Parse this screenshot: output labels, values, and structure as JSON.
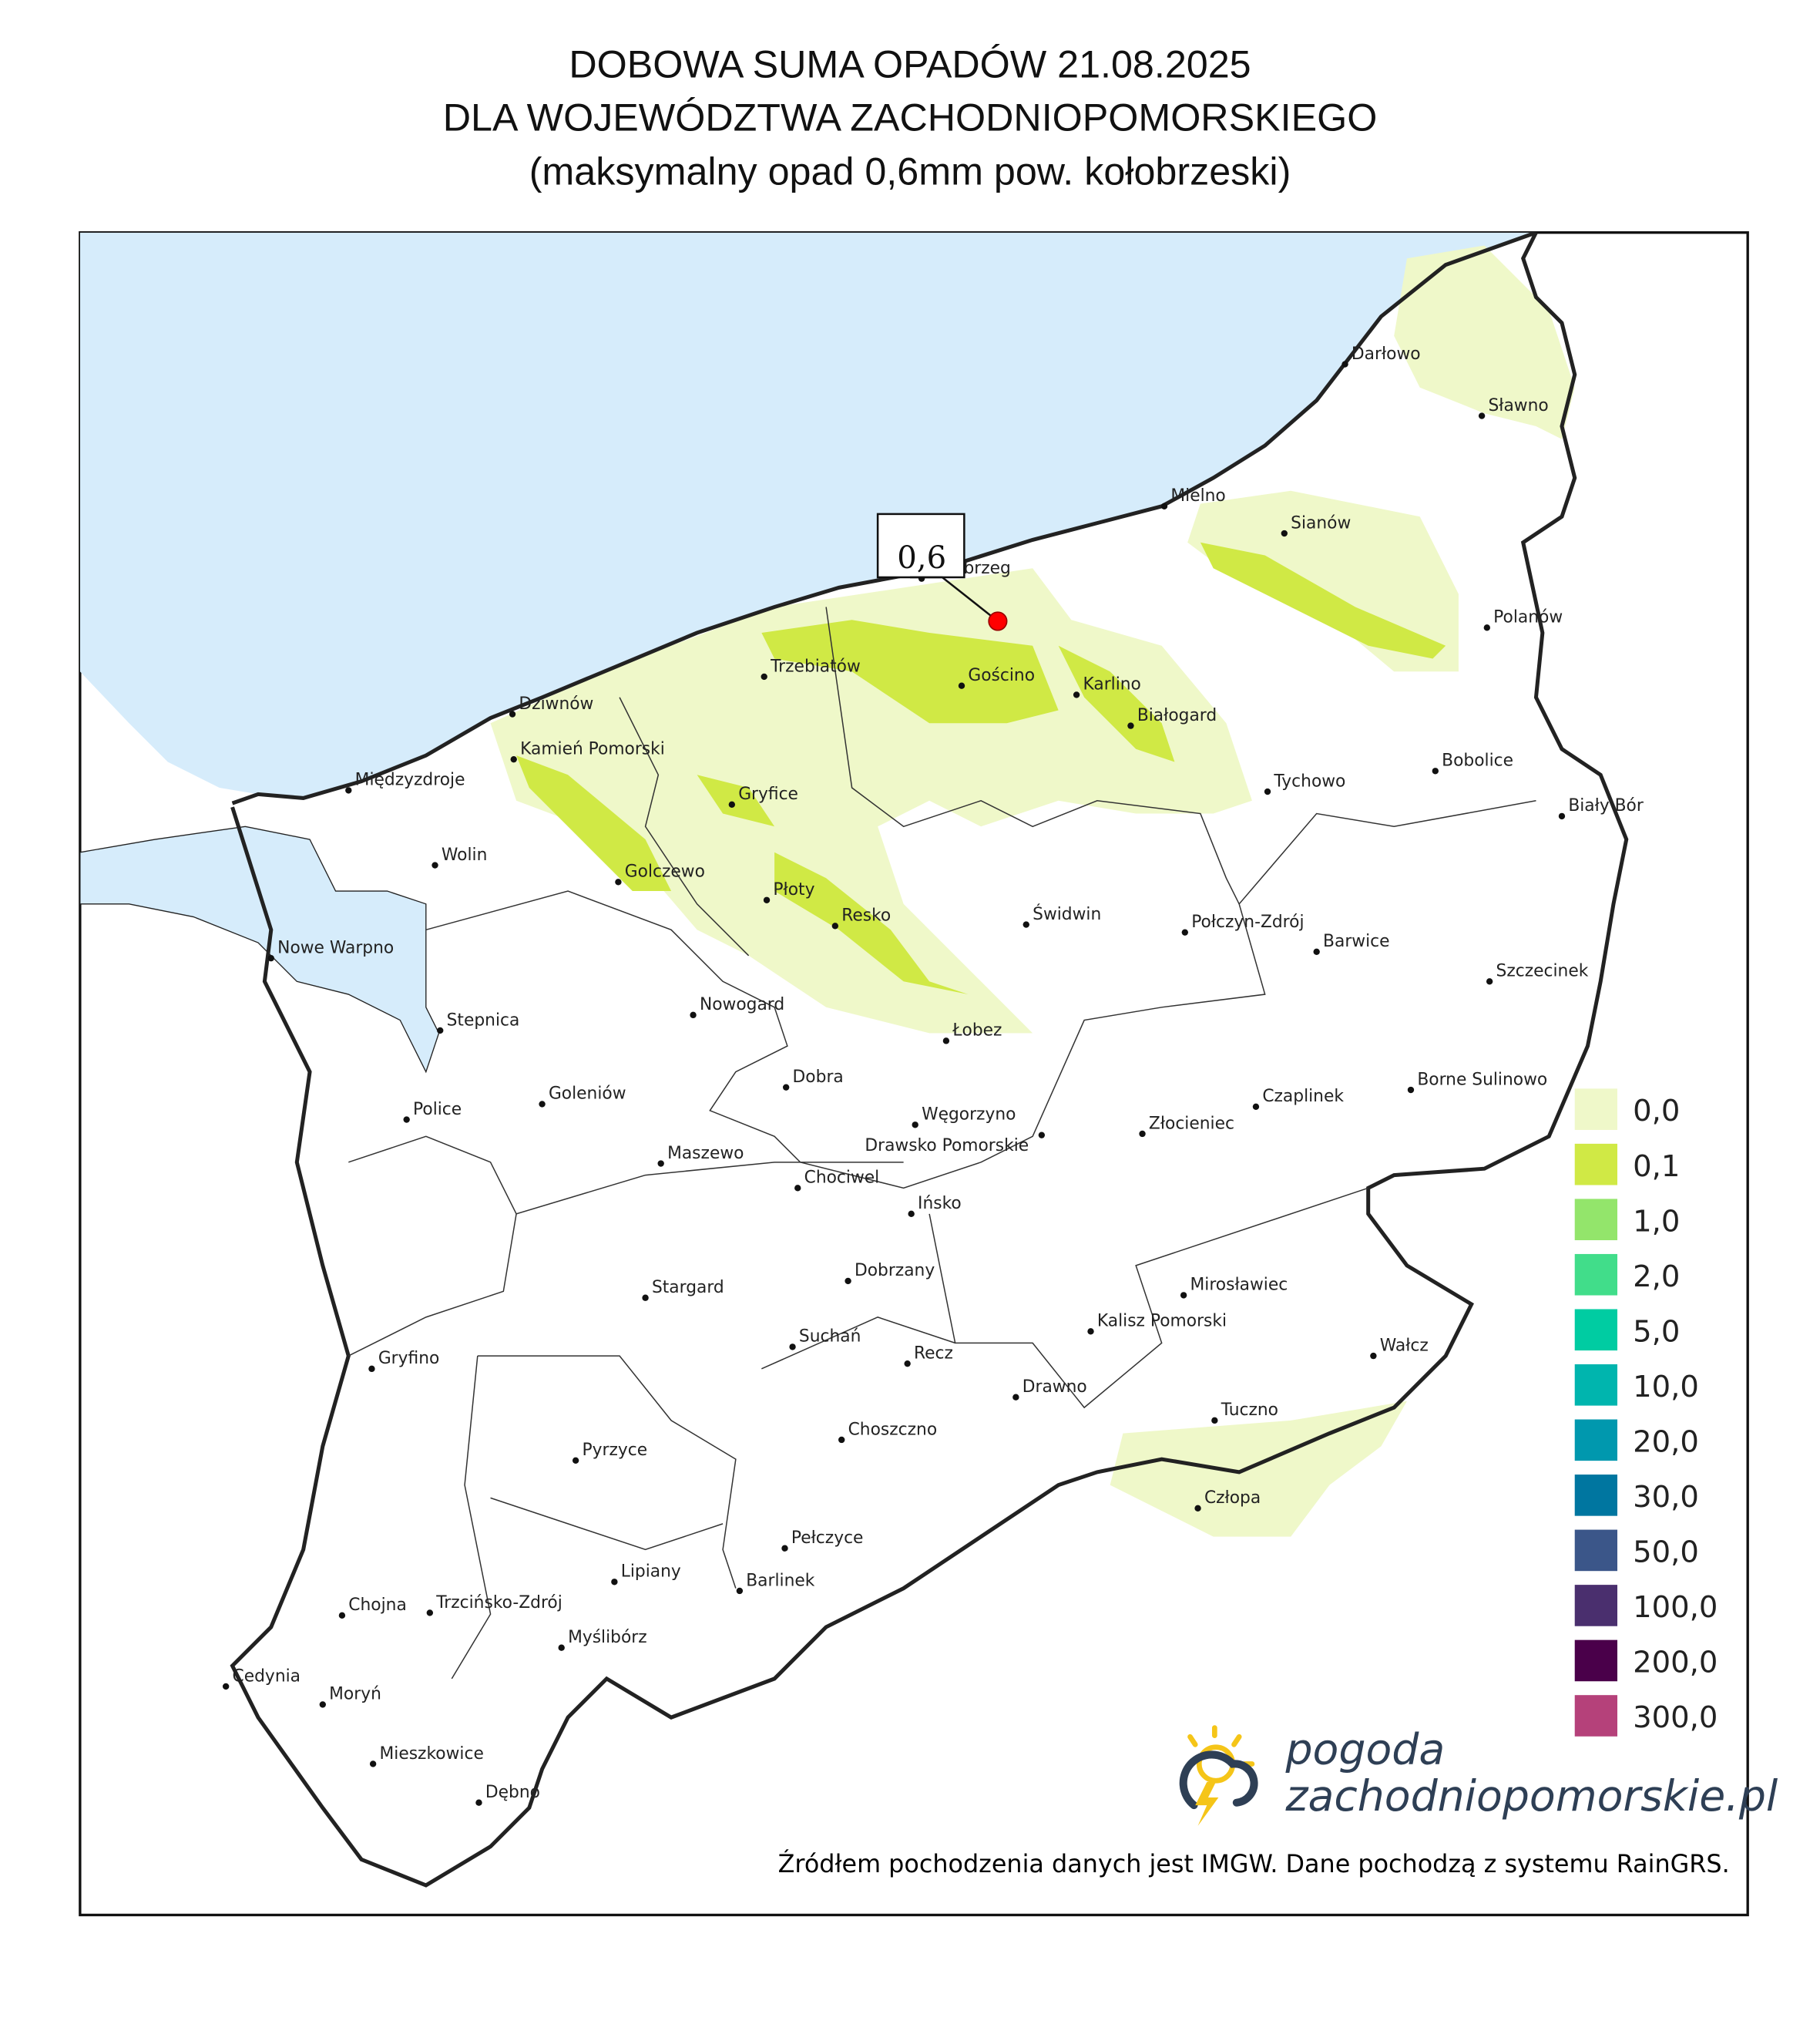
{
  "title": {
    "line1": "DOBOWA SUMA OPADÓW 21.08.2025",
    "line2": "DLA WOJEWÓDZTWA ZACHODNIOPOMORSKIEGO",
    "line3": "(maksymalny opad 0,6mm pow. kołobrzeski)"
  },
  "max_marker": {
    "value": "0,6",
    "color": "#ff0000"
  },
  "colors": {
    "sea": "#d6ecfb",
    "land": "#ffffff",
    "border": "#222222"
  },
  "legend": [
    {
      "label": "0,0",
      "color": "#eff8c9"
    },
    {
      "label": "0,1",
      "color": "#d0e945"
    },
    {
      "label": "1,0",
      "color": "#93e56b"
    },
    {
      "label": "2,0",
      "color": "#41dd8a"
    },
    {
      "label": "5,0",
      "color": "#00cca2"
    },
    {
      "label": "10,0",
      "color": "#00b5ae"
    },
    {
      "label": "20,0",
      "color": "#0098ae"
    },
    {
      "label": "30,0",
      "color": "#0076a0"
    },
    {
      "label": "50,0",
      "color": "#3b5689"
    },
    {
      "label": "100,0",
      "color": "#4a2f6e"
    },
    {
      "label": "200,0",
      "color": "#4a004a"
    },
    {
      "label": "300,0",
      "color": "#b5417a"
    }
  ],
  "cities": [
    {
      "name": "Darłowo"
    },
    {
      "name": "Sławno"
    },
    {
      "name": "Mielno"
    },
    {
      "name": "Sianów"
    },
    {
      "name": "Kołobrzeg"
    },
    {
      "name": "Polanów"
    },
    {
      "name": "Trzebiatów"
    },
    {
      "name": "Gościno"
    },
    {
      "name": "Karlino"
    },
    {
      "name": "Białogard"
    },
    {
      "name": "Dziwnów"
    },
    {
      "name": "Kamień Pomorski"
    },
    {
      "name": "Bobolice"
    },
    {
      "name": "Międzyzdroje"
    },
    {
      "name": "Gryfice"
    },
    {
      "name": "Tychowo"
    },
    {
      "name": "Biały Bór"
    },
    {
      "name": "Golczewo"
    },
    {
      "name": "Wolin"
    },
    {
      "name": "Płoty"
    },
    {
      "name": "Resko"
    },
    {
      "name": "Świdwin"
    },
    {
      "name": "Połczyn-Zdrój"
    },
    {
      "name": "Barwice"
    },
    {
      "name": "Nowe Warpno"
    },
    {
      "name": "Szczecinek"
    },
    {
      "name": "Stepnica"
    },
    {
      "name": "Nowogard"
    },
    {
      "name": "Łobez"
    },
    {
      "name": "Borne Sulinowo"
    },
    {
      "name": "Dobra"
    },
    {
      "name": "Police"
    },
    {
      "name": "Goleniów"
    },
    {
      "name": "Węgorzyno"
    },
    {
      "name": "Czaplinek"
    },
    {
      "name": "Złocieniec"
    },
    {
      "name": "Drawsko Pomorskie"
    },
    {
      "name": "Maszewo"
    },
    {
      "name": "Chociwel"
    },
    {
      "name": "Ińsko"
    },
    {
      "name": "Stargard"
    },
    {
      "name": "Dobrzany"
    },
    {
      "name": "Mirosławiec"
    },
    {
      "name": "Kalisz Pomorski"
    },
    {
      "name": "Gryfino"
    },
    {
      "name": "Suchań"
    },
    {
      "name": "Recz"
    },
    {
      "name": "Wałcz"
    },
    {
      "name": "Drawno"
    },
    {
      "name": "Tuczno"
    },
    {
      "name": "Choszczno"
    },
    {
      "name": "Pyrzyce"
    },
    {
      "name": "Człopa"
    },
    {
      "name": "Pełczyce"
    },
    {
      "name": "Lipiany"
    },
    {
      "name": "Barlinek"
    },
    {
      "name": "Chojna"
    },
    {
      "name": "Trzcińsko-Zdrój"
    },
    {
      "name": "Myślibórz"
    },
    {
      "name": "Cedynia"
    },
    {
      "name": "Moryń"
    },
    {
      "name": "Mieszkowice"
    },
    {
      "name": "Dębno"
    }
  ],
  "logo": {
    "line1": "pogoda",
    "line2": "zachodniopomorskie.pl"
  },
  "source": "Źródłem pochodzenia danych jest IMGW. Dane pochodzą z systemu RainGRS."
}
